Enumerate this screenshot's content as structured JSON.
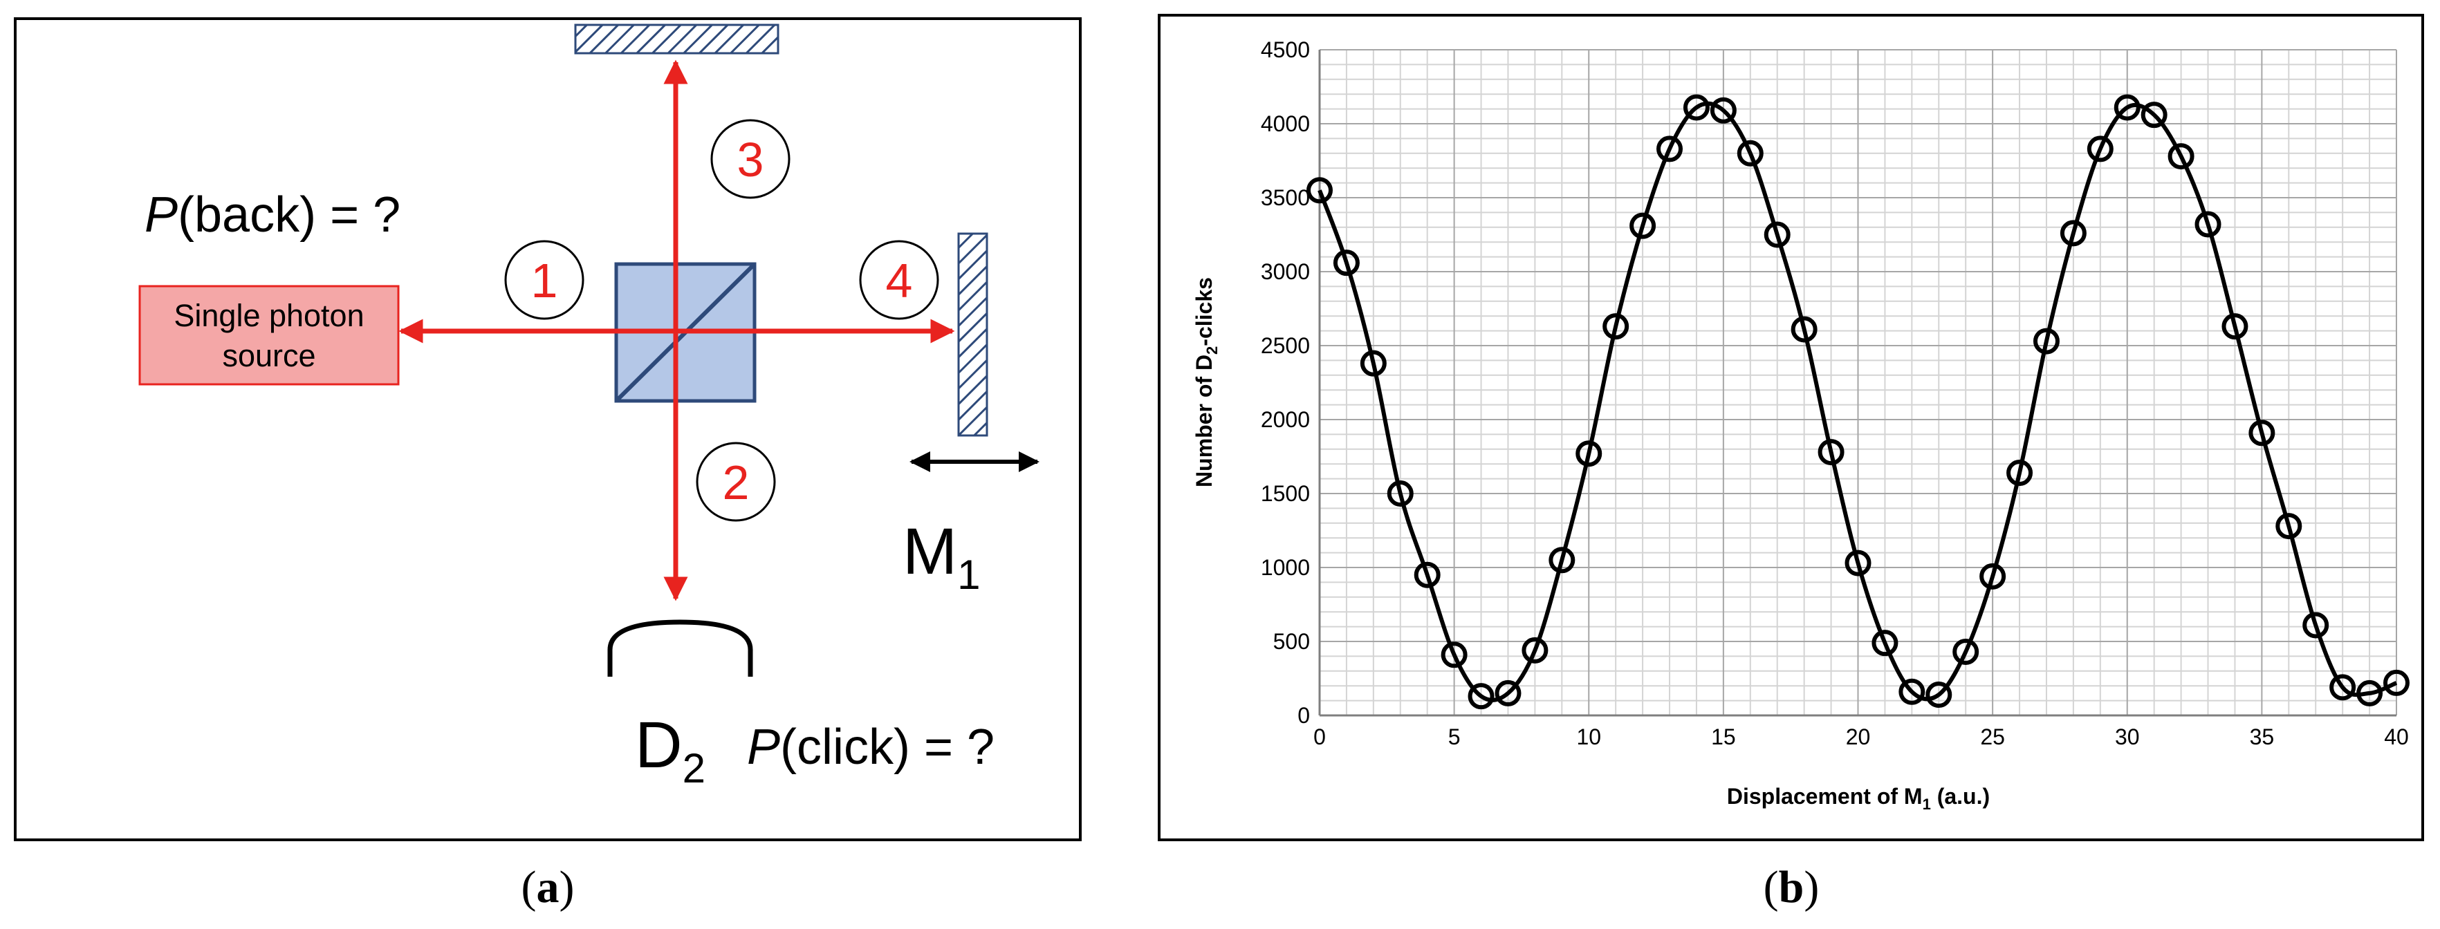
{
  "diagram": {
    "prob_back": {
      "symbol": "P",
      "text": "(back) = ?"
    },
    "source": [
      "Single photon",
      "source"
    ],
    "paths": [
      "1",
      "2",
      "3",
      "4"
    ],
    "mirror": {
      "letter": "M",
      "sub": "1"
    },
    "detector": {
      "letter": "D",
      "sub": "2"
    },
    "prob_click": {
      "symbol": "P",
      "text": "(click) = ?"
    }
  },
  "chart_data": {
    "type": "scatter",
    "smooth_line": true,
    "xlabel": {
      "text": "Displacement of M",
      "sub": "1",
      "rest": " (a.u.)"
    },
    "ylabel": {
      "text": "Number of D",
      "sub": "2",
      "rest": "-clicks"
    },
    "x": [
      0,
      1,
      2,
      3,
      4,
      5,
      6,
      7,
      8,
      9,
      10,
      11,
      12,
      13,
      14,
      15,
      16,
      17,
      18,
      19,
      20,
      21,
      22,
      23,
      24,
      25,
      26,
      27,
      28,
      29,
      30,
      31,
      32,
      33,
      34,
      35,
      36,
      37,
      38,
      39,
      40
    ],
    "series": [
      {
        "color": "#000000",
        "values": [
          3550,
          3060,
          2380,
          1500,
          950,
          410,
          130,
          150,
          440,
          1050,
          1770,
          2630,
          3310,
          3830,
          4110,
          4090,
          3800,
          3250,
          2610,
          1780,
          1030,
          490,
          160,
          140,
          430,
          940,
          1640,
          2530,
          3260,
          3830,
          4110,
          4060,
          3780,
          3320,
          2630,
          1910,
          1280,
          610,
          190,
          150,
          220
        ]
      }
    ],
    "xlim": [
      0,
      40
    ],
    "ylim": [
      0,
      4500
    ],
    "xticks": [
      0,
      5,
      10,
      15,
      20,
      25,
      30,
      35,
      40
    ],
    "yticks": [
      0,
      500,
      1000,
      1500,
      2000,
      2500,
      3000,
      3500,
      4000,
      4500
    ],
    "grid": true,
    "x_minor_ticks": [
      1,
      2,
      3,
      4,
      6,
      7,
      8,
      9,
      11,
      12,
      13,
      14,
      16,
      17,
      18,
      19,
      21,
      22,
      23,
      24,
      26,
      27,
      28,
      29,
      31,
      32,
      33,
      34,
      36,
      37,
      38,
      39
    ],
    "y_minor_ticks": [
      100,
      200,
      300,
      400,
      600,
      700,
      800,
      900,
      1100,
      1200,
      1300,
      1400,
      1600,
      1700,
      1800,
      1900,
      2100,
      2200,
      2300,
      2400,
      2600,
      2700,
      2800,
      2900,
      3100,
      3200,
      3300,
      3400,
      3600,
      3700,
      3800,
      3900,
      4100,
      4200,
      4300,
      4400
    ]
  },
  "captions": [
    {
      "pre": "(",
      "label": "a",
      "post": ")"
    },
    {
      "pre": "(",
      "label": "b",
      "post": ")"
    }
  ]
}
